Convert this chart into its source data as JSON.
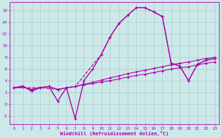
{
  "bg_color": "#cce8e8",
  "grid_color": "#aacccc",
  "line_color": "#aa00aa",
  "xlabel": "Windchill (Refroidissement éolien,°C)",
  "xlim": [
    -0.5,
    23.5
  ],
  "ylim": [
    -3.5,
    17.5
  ],
  "series": [
    {
      "x": [
        0,
        1,
        2,
        3,
        4,
        5,
        6,
        7,
        8,
        9,
        10,
        11,
        12,
        13,
        14,
        15,
        16,
        17,
        18,
        19,
        20,
        21,
        22,
        23
      ],
      "y": [
        2.8,
        3.1,
        2.2,
        2.8,
        3.0,
        0.5,
        2.8,
        -2.5,
        4.0,
        6.0,
        8.5,
        11.5,
        13.8,
        15.2,
        16.5,
        16.5,
        15.8,
        15.0,
        7.0,
        6.5,
        4.0,
        6.8,
        7.5,
        7.8
      ],
      "ls": "-",
      "lw": 1.0,
      "marker": "+"
    },
    {
      "x": [
        0,
        1,
        2,
        3,
        4,
        5,
        6,
        7,
        8,
        9,
        10,
        11,
        12,
        13,
        14,
        15,
        16,
        17,
        18,
        19,
        20,
        21,
        22,
        23
      ],
      "y": [
        2.8,
        2.9,
        2.5,
        2.8,
        3.0,
        2.5,
        2.8,
        3.0,
        3.3,
        3.5,
        3.8,
        4.0,
        4.3,
        4.6,
        4.9,
        5.1,
        5.4,
        5.7,
        6.0,
        6.2,
        6.4,
        6.7,
        7.0,
        7.2
      ],
      "ls": "-",
      "lw": 0.8,
      "marker": "+"
    },
    {
      "x": [
        0,
        1,
        2,
        3,
        4,
        5,
        6,
        7,
        8,
        9,
        10,
        11,
        12,
        13,
        14,
        15,
        16,
        17,
        18,
        19,
        20,
        21,
        22,
        23
      ],
      "y": [
        2.8,
        2.9,
        2.5,
        2.8,
        3.0,
        2.5,
        2.8,
        3.0,
        3.4,
        3.7,
        4.1,
        4.5,
        4.8,
        5.2,
        5.5,
        5.8,
        6.1,
        6.4,
        6.7,
        7.0,
        7.2,
        7.5,
        7.8,
        8.0
      ],
      "ls": "-",
      "lw": 0.8,
      "marker": "+"
    },
    {
      "x": [
        0,
        3,
        5,
        7,
        10,
        11,
        12,
        13,
        14,
        15,
        16,
        17,
        18,
        19,
        20,
        21,
        22,
        23
      ],
      "y": [
        2.8,
        2.8,
        2.5,
        3.0,
        8.5,
        11.5,
        13.8,
        15.2,
        16.5,
        16.5,
        15.8,
        15.0,
        7.0,
        6.5,
        4.0,
        6.8,
        7.5,
        7.8
      ],
      "ls": "--",
      "lw": 0.9,
      "marker": "+"
    }
  ]
}
